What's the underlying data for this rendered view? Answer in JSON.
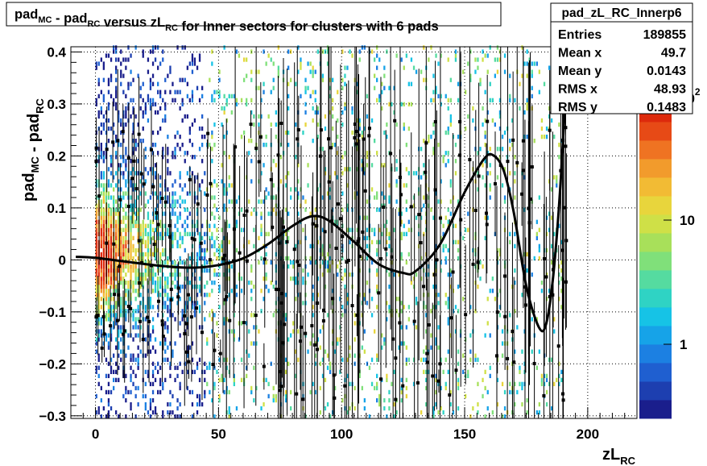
{
  "chart_data": {
    "type": "heatmap",
    "title": {
      "parts": [
        {
          "t": "pad",
          "sub": "MC"
        },
        {
          "t": " - pad",
          "sub": "RC"
        },
        {
          "t": " versus zL",
          "sub": "RC"
        },
        {
          "t": " for Inner sectors for clusters with 6 pads",
          "sub": ""
        }
      ]
    },
    "xlabel": {
      "main": "zL",
      "sub": "RC"
    },
    "ylabel": {
      "parts": [
        {
          "t": "pad",
          "sub": "MC"
        },
        {
          "t": " - pad",
          "sub": "RC"
        }
      ]
    },
    "xlim": [
      -10,
      220
    ],
    "ylim": [
      -0.305,
      0.41
    ],
    "xticks": [
      0,
      50,
      100,
      150,
      200
    ],
    "yticks": [
      -0.3,
      -0.2,
      -0.1,
      0,
      0.1,
      0.2,
      0.3,
      0.4
    ],
    "ytick_labels": [
      "−0.3",
      "−0.2",
      "−0.1",
      "0",
      "0.1",
      "0.2",
      "0.3",
      "0.4"
    ],
    "grid": true,
    "colorbar": {
      "scale": "log",
      "tick_labels": [
        "1",
        "10",
        "10"
      ],
      "tick_exponents": [
        "",
        "",
        "2"
      ],
      "colors": [
        "#1a1e8c",
        "#1d3fb0",
        "#1f5fd0",
        "#1c80e2",
        "#16a3e8",
        "#16c3e6",
        "#2fd3c4",
        "#55dba0",
        "#80e07a",
        "#a8e05a",
        "#cfe047",
        "#e8d53c",
        "#f2bb34",
        "#f29b2c",
        "#ef7322",
        "#e74a16",
        "#dd2a0c"
      ]
    },
    "fit_curve": {
      "x": [
        -8,
        0,
        10,
        20,
        30,
        40,
        50,
        60,
        70,
        80,
        88,
        95,
        105,
        115,
        125,
        130,
        140,
        150,
        158,
        162,
        166,
        170,
        175,
        180,
        183,
        186,
        189,
        192
      ],
      "y": [
        0.006,
        0.004,
        -0.002,
        -0.008,
        -0.013,
        -0.015,
        -0.01,
        0.003,
        0.03,
        0.065,
        0.084,
        0.075,
        0.035,
        -0.008,
        -0.025,
        -0.022,
        0.03,
        0.13,
        0.195,
        0.2,
        0.17,
        0.09,
        -0.05,
        -0.128,
        -0.125,
        -0.03,
        0.15,
        0.42
      ]
    },
    "profile_points_note": "",
    "stats_box": {
      "name": "pad_zL_RC_Innerp6",
      "rows": [
        {
          "label": "Entries",
          "value": "189855"
        },
        {
          "label": "Mean x",
          "value": "49.7"
        },
        {
          "label": "Mean y",
          "value": "0.0143"
        },
        {
          "label": "RMS x",
          "value": "48.93"
        },
        {
          "label": "RMS y",
          "value": "0.1483"
        }
      ]
    }
  }
}
